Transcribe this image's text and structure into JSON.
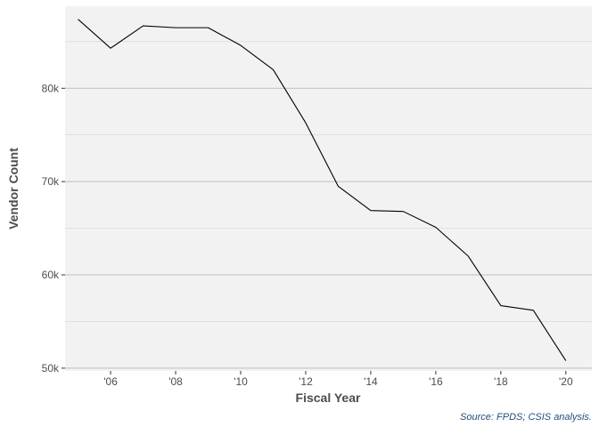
{
  "chart_data": {
    "type": "line",
    "title": "",
    "xlabel": "Fiscal Year",
    "ylabel": "Vendor Count",
    "caption": "Source: FPDS; CSIS analysis.",
    "x": [
      2005,
      2006,
      2007,
      2008,
      2009,
      2010,
      2011,
      2012,
      2013,
      2014,
      2015,
      2016,
      2017,
      2018,
      2019,
      2020
    ],
    "series": [
      {
        "values": [
          87400,
          84300,
          86700,
          86500,
          86500,
          84600,
          82000,
          76300,
          69500,
          66900,
          66800,
          65100,
          62000,
          56700,
          56200,
          50800
        ]
      }
    ],
    "xticks": [
      2006,
      2008,
      2010,
      2012,
      2014,
      2016,
      2018,
      2020
    ],
    "xtick_labels": [
      "'06",
      "'08",
      "'10",
      "'12",
      "'14",
      "'16",
      "'18",
      "'20"
    ],
    "yticks": [
      50000,
      60000,
      70000,
      80000
    ],
    "ytick_labels": [
      "50k",
      "60k",
      "70k",
      "80k"
    ],
    "xlim": [
      2004.6,
      2020.8
    ],
    "ylim": [
      49700,
      88800
    ],
    "grid": true,
    "colors": {
      "panel_background": "#f2f2f2",
      "grid_major": "#bfbfbf",
      "grid_minor": "#d4d4d4",
      "line": "#000000",
      "caption": "#1f4e79"
    }
  }
}
